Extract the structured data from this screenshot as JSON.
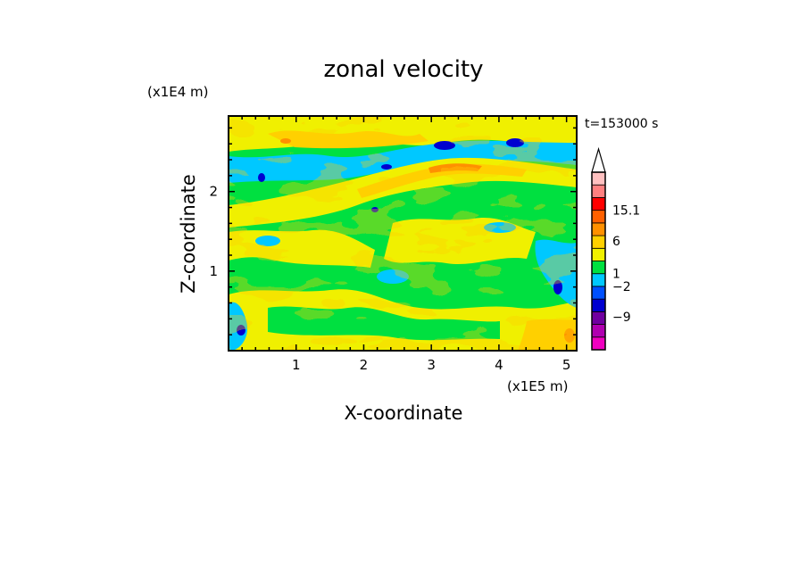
{
  "chart_data": {
    "type": "heatmap",
    "title": "zonal velocity",
    "xlabel": "X-coordinate",
    "ylabel": "Z-coordinate",
    "x_unit": "(x1E5 m)",
    "y_unit": "(x1E4 m)",
    "time_label": "t=153000 s",
    "xlim": [
      0,
      5.15
    ],
    "ylim": [
      0,
      2.95
    ],
    "x_ticks": [
      1,
      2,
      3,
      4,
      5
    ],
    "y_ticks": [
      1,
      2
    ],
    "colorbar": {
      "labels": [
        {
          "value": "15.1",
          "level": 11
        },
        {
          "value": "6",
          "level": 8.6
        },
        {
          "value": "1",
          "level": 6
        },
        {
          "value": "−2",
          "level": 5
        },
        {
          "value": "−9",
          "level": 2.6
        }
      ],
      "level_colors": [
        "#f000c0",
        "#b000b0",
        "#7000a0",
        "#0000d0",
        "#0050ff",
        "#00c8ff",
        "#00e040",
        "#f0f000",
        "#ffd000",
        "#ff9000",
        "#ff6000",
        "#ff0000",
        "#ff8080",
        "#ffc0c0"
      ]
    },
    "grid": false,
    "legend": "right colorbar",
    "field_description_colors": {
      "positive": "#ffd000",
      "neutral": "#00e040",
      "negative": "#00c8ff"
    }
  }
}
